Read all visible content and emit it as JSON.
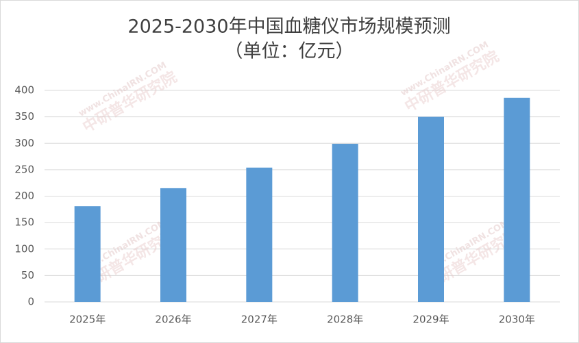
{
  "chart_data": {
    "type": "bar",
    "title": "2025-2030年中国血糖仪市场规模预测",
    "subtitle": "（单位：亿元）",
    "categories": [
      "2025年",
      "2026年",
      "2027年",
      "2028年",
      "2029年",
      "2030年"
    ],
    "values": [
      181,
      215,
      254,
      299,
      350,
      386
    ],
    "color": "#5b9bd5",
    "ylim": [
      0,
      400
    ],
    "yticks": [
      0,
      50,
      100,
      150,
      200,
      250,
      300,
      350,
      400
    ],
    "grid": true,
    "watermark": [
      "www.ChinaIRN.COM",
      "中研普华研究院"
    ]
  }
}
